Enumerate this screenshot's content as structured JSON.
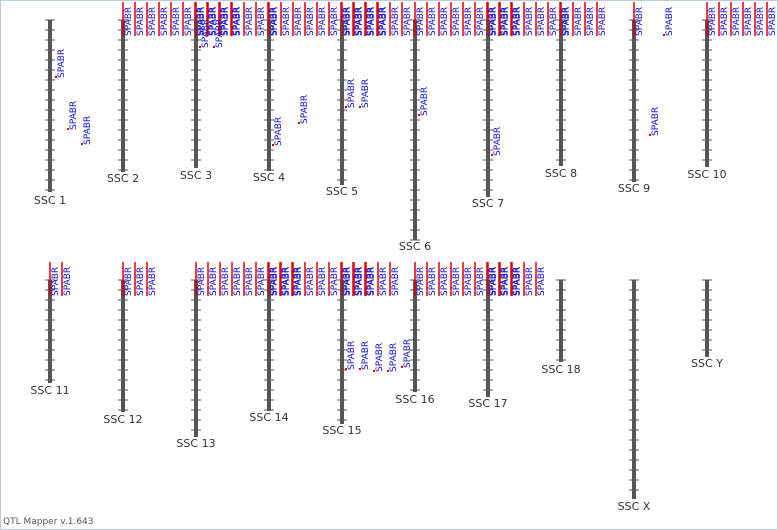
{
  "chromosomes": [
    {
      "label": "SSC 1",
      "qtls": [
        "SPABR",
        "SPABR",
        "SPABR"
      ]
    },
    {
      "label": "SSC 2",
      "qtls": [
        "SPABR",
        "SPABR",
        "SPABR",
        "SPABR",
        "SPABR",
        "SPABR",
        "SPABR",
        "SPABR",
        "SPABR",
        "SPABR"
      ]
    },
    {
      "label": "SSC 3",
      "qtls": [
        "SPABR",
        "SPABR",
        "SPABR",
        "SPABR",
        "SPABR",
        "SPABR",
        "SPABR",
        "SPABR",
        "SPABR"
      ]
    },
    {
      "label": "SSC 4",
      "qtls": [
        "SPABR",
        "SPABR",
        "SPABR",
        "SPABR",
        "SPABR",
        "SPABR",
        "SPABR",
        "SPABR",
        "SPABR",
        "SPABR",
        "SPABR",
        "SPABR"
      ]
    },
    {
      "label": "SSC 5",
      "qtls": [
        "SPABR",
        "SPABR",
        "SPABR",
        "SPABR",
        "SPABR",
        "SPABR",
        "SPABR",
        "SPABR"
      ]
    },
    {
      "label": "SSC 6",
      "qtls": [
        "SPABR",
        "SPABR",
        "SPABR",
        "SPABR",
        "SPABR",
        "SPABR",
        "SPABR",
        "SPABR",
        "SPABR",
        "SPABR"
      ]
    },
    {
      "label": "SSC 7",
      "qtls": [
        "SPABR",
        "SPABR",
        "SPABR",
        "SPABR",
        "SPABR",
        "SPABR",
        "SPABR",
        "SPABR"
      ]
    },
    {
      "label": "SSC 8",
      "qtls": [
        "SPABR",
        "SPABR",
        "SPABR",
        "SPABR"
      ]
    },
    {
      "label": "SSC 9",
      "qtls": [
        "SPABR",
        "SPABR",
        "SPABR"
      ]
    },
    {
      "label": "SSC 10",
      "qtls": [
        "SPABR",
        "SPABR",
        "SPABR",
        "SPABR",
        "SPABR",
        "SPABR",
        "SPABR",
        "SPABR"
      ]
    },
    {
      "label": "SSC 11",
      "qtls": [
        "SPABR",
        "SPABR"
      ]
    },
    {
      "label": "SSC 12",
      "qtls": [
        "SPABR",
        "SPABR",
        "SPABR"
      ]
    },
    {
      "label": "SSC 13",
      "qtls": [
        "SPABR",
        "SPABR",
        "SPABR",
        "SPABR",
        "SPABR",
        "SPABR",
        "SPABR",
        "SPABR",
        "SPABR"
      ]
    },
    {
      "label": "SSC 14",
      "qtls": [
        "SPABR",
        "SPABR",
        "SPABR",
        "SPABR",
        "SPABR",
        "SPABR",
        "SPABR",
        "SPABR",
        "SPABR"
      ]
    },
    {
      "label": "SSC 15",
      "qtls": [
        "SPABR",
        "SPABR",
        "SPABR",
        "SPABR",
        "SPABR",
        "SPABR",
        "SPABR",
        "SPABR",
        "SPABR",
        "SPABR"
      ]
    },
    {
      "label": "SSC 16",
      "qtls": [
        "SPABR",
        "SPABR",
        "SPABR",
        "SPABR",
        "SPABR",
        "SPABR",
        "SPABR",
        "SPABR",
        "SPABR"
      ]
    },
    {
      "label": "SSC 17",
      "qtls": [
        "SPABR",
        "SPABR",
        "SPABR",
        "SPABR",
        "SPABR"
      ]
    },
    {
      "label": "SSC 18",
      "qtls": []
    },
    {
      "label": "SSC X",
      "qtls": []
    },
    {
      "label": "SSC Y",
      "qtls": []
    }
  ],
  "footer": "QTL Mapper v.1.643"
}
